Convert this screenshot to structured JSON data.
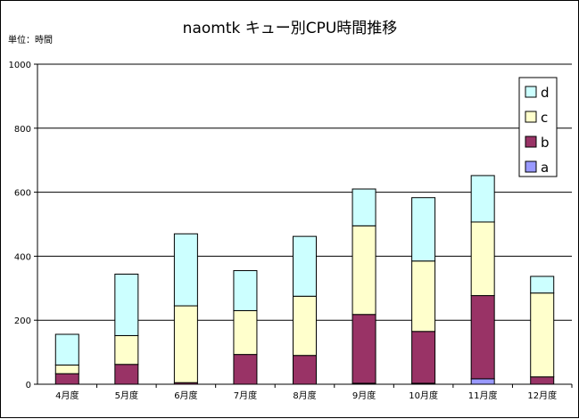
{
  "chart_data": {
    "type": "bar",
    "stacked": true,
    "title": "naomtk キュー別CPU時間推移",
    "unit_label": "単位：時間",
    "xlabel": "",
    "ylabel": "",
    "ylim": [
      0,
      1000
    ],
    "yticks": [
      0,
      200,
      400,
      600,
      800,
      1000
    ],
    "grid": true,
    "legend_position": "top-right",
    "categories": [
      "4月度",
      "5月度",
      "6月度",
      "7月度",
      "8月度",
      "9月度",
      "10月度",
      "11月度",
      "12月度"
    ],
    "series": [
      {
        "name": "a",
        "color": "#9999ff",
        "values": [
          0,
          0,
          0,
          0,
          0,
          3,
          3,
          17,
          0
        ]
      },
      {
        "name": "b",
        "color": "#993366",
        "values": [
          33,
          62,
          5,
          93,
          90,
          215,
          162,
          260,
          23
        ]
      },
      {
        "name": "c",
        "color": "#ffffcc",
        "values": [
          27,
          90,
          240,
          137,
          185,
          277,
          220,
          230,
          262
        ]
      },
      {
        "name": "d",
        "color": "#ccffff",
        "values": [
          96,
          192,
          225,
          125,
          187,
          115,
          198,
          145,
          52
        ]
      }
    ]
  }
}
